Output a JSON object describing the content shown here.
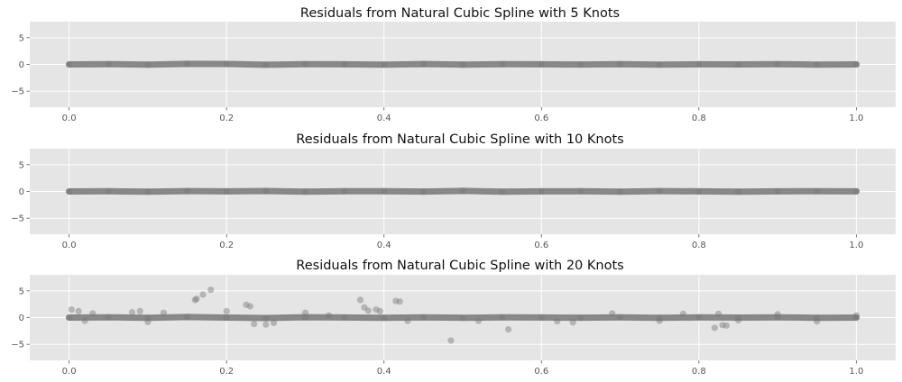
{
  "chart_data": [
    {
      "type": "scatter",
      "title": "Residuals from Natural Cubic Spline with 5 Knots",
      "xlabel": "",
      "ylabel": "",
      "xlim": [
        -0.05,
        1.05
      ],
      "ylim": [
        -8,
        8
      ],
      "x_ticks": [
        "0.0",
        "0.2",
        "0.4",
        "0.6",
        "0.8",
        "1.0"
      ],
      "x_tick_values": [
        0.0,
        0.2,
        0.4,
        0.6,
        0.8,
        1.0
      ],
      "y_ticks": [
        "5",
        "0",
        "−5"
      ],
      "y_tick_values": [
        5,
        0,
        -5
      ],
      "grid": true,
      "marker_color": "#777777",
      "series": [
        {
          "x": [
            0.0,
            0.05,
            0.1,
            0.15,
            0.2,
            0.25,
            0.3,
            0.35,
            0.4,
            0.45,
            0.5,
            0.55,
            0.6,
            0.65,
            0.7,
            0.75,
            0.8,
            0.85,
            0.9,
            0.95,
            1.0
          ],
          "y": [
            0.0,
            0.05,
            -0.05,
            0.1,
            0.08,
            -0.06,
            0.04,
            0.02,
            -0.03,
            0.06,
            -0.04,
            0.03,
            0.01,
            -0.02,
            0.05,
            -0.05,
            0.02,
            0.0,
            0.04,
            -0.03,
            0.0
          ]
        }
      ]
    },
    {
      "type": "scatter",
      "title": "Residuals from Natural Cubic Spline with 10 Knots",
      "xlabel": "",
      "ylabel": "",
      "xlim": [
        -0.05,
        1.05
      ],
      "ylim": [
        -8,
        8
      ],
      "x_ticks": [
        "0.0",
        "0.2",
        "0.4",
        "0.6",
        "0.8",
        "1.0"
      ],
      "x_tick_values": [
        0.0,
        0.2,
        0.4,
        0.6,
        0.8,
        1.0
      ],
      "y_ticks": [
        "5",
        "0",
        "−5"
      ],
      "y_tick_values": [
        5,
        0,
        -5
      ],
      "grid": true,
      "marker_color": "#777777",
      "series": [
        {
          "x": [
            0.0,
            0.05,
            0.1,
            0.15,
            0.2,
            0.25,
            0.3,
            0.35,
            0.4,
            0.45,
            0.5,
            0.55,
            0.6,
            0.65,
            0.7,
            0.75,
            0.8,
            0.85,
            0.9,
            0.95,
            1.0
          ],
          "y": [
            0.0,
            0.03,
            -0.04,
            0.06,
            0.02,
            0.08,
            -0.03,
            0.05,
            0.04,
            -0.02,
            0.1,
            -0.05,
            0.02,
            0.03,
            -0.04,
            0.06,
            0.01,
            -0.03,
            0.02,
            0.05,
            0.02
          ]
        }
      ]
    },
    {
      "type": "scatter",
      "title": "Residuals from Natural Cubic Spline with 20 Knots",
      "xlabel": "",
      "ylabel": "",
      "xlim": [
        -0.05,
        1.05
      ],
      "ylim": [
        -8,
        8
      ],
      "x_ticks": [
        "0.0",
        "0.2",
        "0.4",
        "0.6",
        "0.8",
        "1.0"
      ],
      "x_tick_values": [
        0.0,
        0.2,
        0.4,
        0.6,
        0.8,
        1.0
      ],
      "y_ticks": [
        "5",
        "0",
        "−5"
      ],
      "y_tick_values": [
        5,
        0,
        -5
      ],
      "grid": true,
      "marker_color": "#777777",
      "series": [
        {
          "x": [
            0.003,
            0.012,
            0.02,
            0.03,
            0.08,
            0.09,
            0.1,
            0.12,
            0.16,
            0.162,
            0.17,
            0.18,
            0.2,
            0.225,
            0.23,
            0.235,
            0.25,
            0.26,
            0.3,
            0.33,
            0.37,
            0.375,
            0.38,
            0.39,
            0.395,
            0.415,
            0.42,
            0.43,
            0.485,
            0.52,
            0.558,
            0.62,
            0.64,
            0.69,
            0.75,
            0.78,
            0.82,
            0.825,
            0.83,
            0.835,
            0.85,
            0.9,
            0.95,
            1.0
          ],
          "y": [
            1.5,
            1.2,
            -0.6,
            0.8,
            1.0,
            1.2,
            -0.8,
            0.9,
            3.3,
            3.5,
            4.3,
            5.2,
            1.2,
            2.4,
            2.1,
            -1.2,
            -1.3,
            -1.0,
            0.9,
            0.4,
            3.3,
            1.9,
            1.3,
            1.5,
            1.2,
            3.1,
            3.0,
            -0.6,
            -4.3,
            -0.6,
            -2.2,
            -0.7,
            -0.9,
            0.8,
            -0.6,
            0.7,
            -1.9,
            0.7,
            -1.4,
            -1.5,
            -0.5,
            0.6,
            -0.7,
            0.4
          ]
        },
        {
          "x": [
            0.0,
            0.05,
            0.1,
            0.15,
            0.2,
            0.25,
            0.3,
            0.35,
            0.4,
            0.45,
            0.5,
            0.55,
            0.6,
            0.65,
            0.7,
            0.75,
            0.8,
            0.85,
            0.9,
            0.95,
            1.0
          ],
          "y": [
            0.0,
            0.05,
            -0.05,
            0.1,
            0.0,
            -0.08,
            0.06,
            0.02,
            -0.03,
            0.05,
            -0.04,
            0.03,
            0.02,
            -0.02,
            0.04,
            -0.05,
            0.03,
            0.0,
            0.05,
            -0.03,
            0.0
          ]
        }
      ]
    }
  ]
}
